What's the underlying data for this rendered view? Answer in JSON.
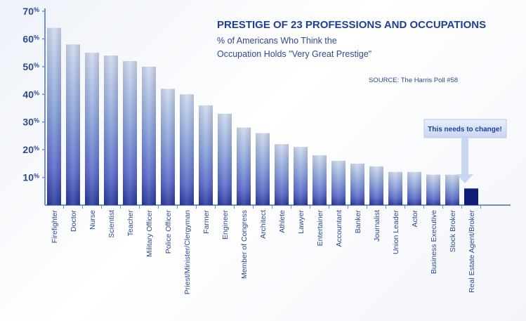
{
  "chart_data": {
    "type": "bar",
    "title": "PRESTIGE OF 23 PROFESSIONS AND OCCUPATIONS",
    "subtitle_line1": "% of Americans Who Think the",
    "subtitle_line2": "Occupation Holds \"Very Great Prestige\"",
    "source": "SOURCE: The Harris Poll #58",
    "annotation": "This needs to change!",
    "ylim": [
      0,
      70
    ],
    "yticks": [
      10,
      20,
      30,
      40,
      50,
      60,
      70
    ],
    "ytick_unit": "%",
    "categories": [
      "Firefighter",
      "Doctor",
      "Nurse",
      "Scientist",
      "Teacher",
      "Military Officer",
      "Police Officer",
      "Priest/Minister/Clergyman",
      "Farmer",
      "Engineer",
      "Member of Congress",
      "Architect",
      "Athlete",
      "Lawyer",
      "Entertainer",
      "Accountant",
      "Banker",
      "Journalist",
      "Union Leader",
      "Actor",
      "Business Executive",
      "Stock Broker",
      "Real Estate Agent/Broker"
    ],
    "values": [
      64,
      58,
      55,
      54,
      52,
      50,
      42,
      40,
      36,
      33,
      28,
      26,
      22,
      21,
      18,
      16,
      15,
      14,
      12,
      12,
      11,
      11,
      6
    ],
    "highlight_index": 22,
    "colors": {
      "bar_top": "#cfdaf0",
      "bar_mid": "#7f9bd8",
      "bar_bottom": "#2a3b9e",
      "highlight": "#0d1d78",
      "axis": "#6f8ed4",
      "text": "#2e4a8f",
      "title": "#1f3f93"
    }
  }
}
